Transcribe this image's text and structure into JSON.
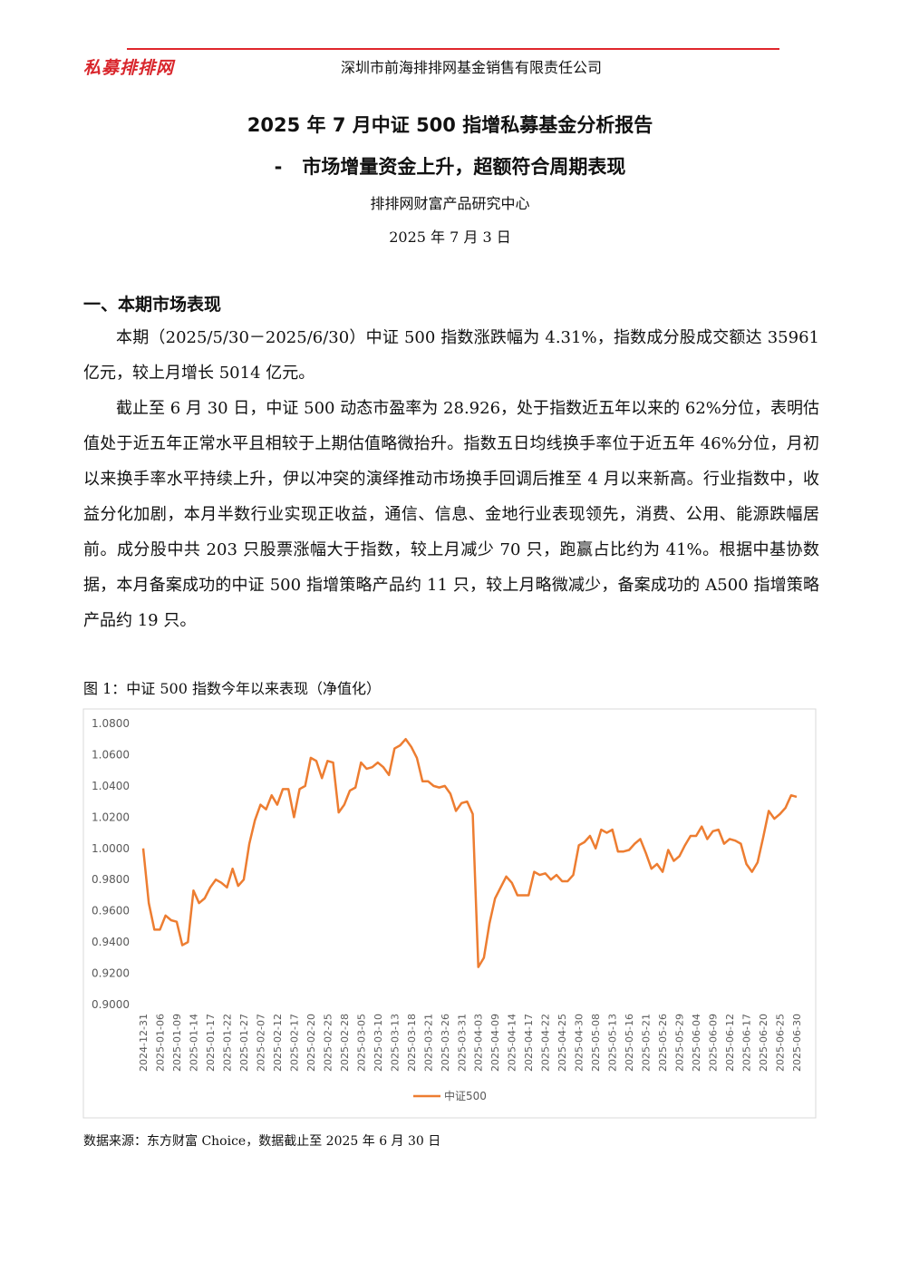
{
  "header": {
    "logo": "私募排排网",
    "company": "深圳市前海排排网基金销售有限责任公司"
  },
  "title": {
    "line1": "2025 年 7 月中证 500 指增私募基金分析报告",
    "line2": "-   市场增量资金上升，超额符合周期表现",
    "org": "排排网财富产品研究中心",
    "date": "2025 年 7 月 3 日"
  },
  "section": {
    "heading": "一、本期市场表现",
    "paragraphs": [
      "本期（2025/5/30－2025/6/30）中证 500 指数涨跌幅为 4.31%，指数成分股成交额达 35961 亿元，较上月增长 5014 亿元。",
      "截止至 6 月 30 日，中证 500 动态市盈率为 28.926，处于指数近五年以来的 62%分位，表明估值处于近五年正常水平且相较于上期估值略微抬升。指数五日均线换手率位于近五年 46%分位，月初以来换手率水平持续上升，伊以冲突的演绎推动市场换手回调后推至 4 月以来新高。行业指数中，收益分化加剧，本月半数行业实现正收益，通信、信息、金地行业表现领先，消费、公用、能源跌幅居前。成分股中共 203 只股票涨幅大于指数，较上月减少 70 只，跑赢占比约为 41%。根据中基协数据，本月备案成功的中证 500 指增策略产品约 11 只，较上月略微减少，备案成功的 A500 指增策略产品约 19 只。"
    ]
  },
  "figure": {
    "caption": "图 1：中证 500 指数今年以来表现（净值化）",
    "source": "数据来源：东方财富 Choice，数据截止至 2025 年 6 月 30 日"
  },
  "chart_data": {
    "type": "line",
    "grid": false,
    "legend": "bottom",
    "categories": [
      "2024-12-31",
      null,
      null,
      "2025-01-06",
      null,
      null,
      "2025-01-09",
      null,
      null,
      "2025-01-14",
      null,
      null,
      "2025-01-17",
      null,
      null,
      "2025-01-22",
      null,
      null,
      "2025-01-27",
      null,
      null,
      "2025-02-07",
      null,
      null,
      "2025-02-12",
      null,
      null,
      "2025-02-17",
      null,
      null,
      "2025-02-20",
      null,
      null,
      "2025-02-25",
      null,
      null,
      "2025-02-28",
      null,
      null,
      "2025-03-05",
      null,
      null,
      "2025-03-10",
      null,
      null,
      "2025-03-13",
      null,
      null,
      "2025-03-18",
      null,
      null,
      "2025-03-21",
      null,
      null,
      "2025-03-26",
      null,
      null,
      "2025-03-31",
      null,
      null,
      "2025-04-03",
      null,
      null,
      "2025-04-09",
      null,
      null,
      "2025-04-14",
      null,
      null,
      "2025-04-17",
      null,
      null,
      "2025-04-22",
      null,
      null,
      "2025-04-25",
      null,
      null,
      "2025-04-30",
      null,
      null,
      "2025-05-08",
      null,
      null,
      "2025-05-13",
      null,
      null,
      "2025-05-16",
      null,
      null,
      "2025-05-21",
      null,
      null,
      "2025-05-26",
      null,
      null,
      "2025-05-29",
      null,
      null,
      "2025-06-04",
      null,
      null,
      "2025-06-09",
      null,
      null,
      "2025-06-12",
      null,
      null,
      "2025-06-17",
      null,
      null,
      "2025-06-20",
      null,
      null,
      "2025-06-25",
      null,
      null,
      "2025-06-30"
    ],
    "series": [
      {
        "name": "中证500",
        "color": "#ed7d31",
        "values": [
          1.0,
          0.965,
          0.948,
          0.948,
          0.957,
          0.954,
          0.953,
          0.938,
          0.94,
          0.973,
          0.965,
          0.968,
          0.975,
          0.98,
          0.978,
          0.975,
          0.987,
          0.976,
          0.98,
          1.003,
          1.018,
          1.028,
          1.025,
          1.034,
          1.028,
          1.038,
          1.038,
          1.02,
          1.038,
          1.04,
          1.058,
          1.056,
          1.045,
          1.056,
          1.055,
          1.023,
          1.028,
          1.037,
          1.039,
          1.055,
          1.051,
          1.052,
          1.055,
          1.052,
          1.047,
          1.064,
          1.066,
          1.07,
          1.065,
          1.058,
          1.043,
          1.043,
          1.04,
          1.039,
          1.04,
          1.035,
          1.024,
          1.029,
          1.03,
          1.022,
          0.924,
          0.93,
          0.952,
          0.968,
          0.975,
          0.982,
          0.978,
          0.97,
          0.97,
          0.97,
          0.985,
          0.983,
          0.984,
          0.98,
          0.983,
          0.979,
          0.979,
          0.983,
          1.002,
          1.004,
          1.008,
          1.0,
          1.012,
          1.01,
          1.012,
          0.998,
          0.998,
          0.999,
          1.003,
          1.006,
          0.997,
          0.987,
          0.99,
          0.985,
          0.999,
          0.992,
          0.995,
          1.002,
          1.008,
          1.008,
          1.014,
          1.006,
          1.011,
          1.012,
          1.003,
          1.006,
          1.005,
          1.003,
          0.99,
          0.985,
          0.991,
          1.007,
          1.024,
          1.019,
          1.022,
          1.026,
          1.034,
          1.033
        ]
      }
    ],
    "ylim": [
      0.9,
      1.08
    ],
    "yticks": [
      {
        "value": 0.9,
        "label": "0.9000"
      },
      {
        "value": 0.92,
        "label": "0.9200"
      },
      {
        "value": 0.94,
        "label": "0.9400"
      },
      {
        "value": 0.96,
        "label": "0.9600"
      },
      {
        "value": 0.98,
        "label": "0.9800"
      },
      {
        "value": 1.0,
        "label": "1.0000"
      },
      {
        "value": 1.02,
        "label": "1.0200"
      },
      {
        "value": 1.04,
        "label": "1.0400"
      },
      {
        "value": 1.06,
        "label": "1.0600"
      },
      {
        "value": 1.08,
        "label": "1.0800"
      }
    ]
  }
}
